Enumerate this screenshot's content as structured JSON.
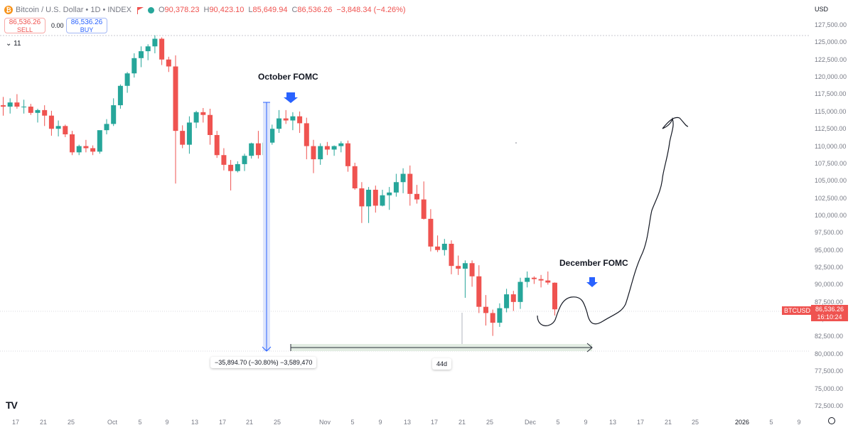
{
  "header": {
    "coin_glyph": "₿",
    "symbol": "Bitcoin / U.S. Dollar • 1D • INDEX",
    "ohlc": [
      {
        "k": "O",
        "v": "90,378.23"
      },
      {
        "k": "H",
        "v": "90,423.10"
      },
      {
        "k": "L",
        "v": "85,649.94"
      },
      {
        "k": "C",
        "v": "86,536.26"
      },
      {
        "k": "",
        "v": "−3,848.34 (−4.26%)"
      }
    ]
  },
  "trade": {
    "sell_price": "86,536.26",
    "sell_label": "SELL",
    "buy_price": "86,536.26",
    "buy_label": "BUY",
    "spread": "0.00"
  },
  "indicator_toggle": "11",
  "currency": "USD",
  "y_axis_labels": [
    "127,500.00",
    "125,000.00",
    "122,500.00",
    "120,000.00",
    "117,500.00",
    "115,000.00",
    "112,500.00",
    "110,000.00",
    "107,500.00",
    "105,000.00",
    "102,500.00",
    "100,000.00",
    "97,500.00",
    "95,000.00",
    "92,500.00",
    "90,000.00",
    "87,500.00",
    "85,000.00",
    "82,500.00",
    "80,000.00",
    "77,500.00",
    "75,000.00",
    "72,500.00"
  ],
  "x_axis_labels": [
    {
      "t": "17",
      "b": false
    },
    {
      "t": "21",
      "b": false
    },
    {
      "t": "25",
      "b": false
    },
    {
      "t": "Oct",
      "b": false
    },
    {
      "t": "5",
      "b": false
    },
    {
      "t": "9",
      "b": false
    },
    {
      "t": "13",
      "b": false
    },
    {
      "t": "17",
      "b": false
    },
    {
      "t": "21",
      "b": false
    },
    {
      "t": "25",
      "b": false
    },
    {
      "t": "Nov",
      "b": false
    },
    {
      "t": "5",
      "b": false
    },
    {
      "t": "9",
      "b": false
    },
    {
      "t": "13",
      "b": false
    },
    {
      "t": "17",
      "b": false
    },
    {
      "t": "21",
      "b": false
    },
    {
      "t": "25",
      "b": false
    },
    {
      "t": "Dec",
      "b": false
    },
    {
      "t": "5",
      "b": false
    },
    {
      "t": "9",
      "b": false
    },
    {
      "t": "13",
      "b": false
    },
    {
      "t": "17",
      "b": false
    },
    {
      "t": "21",
      "b": false
    },
    {
      "t": "25",
      "b": false
    },
    {
      "t": "2026",
      "b": true
    },
    {
      "t": "5",
      "b": false
    },
    {
      "t": "9",
      "b": false
    }
  ],
  "annotations": {
    "october": "October FOMC",
    "december": "December FOMC",
    "measure": "−35,894.70 (−30.80%) −3,589,470",
    "duration": "44d"
  },
  "price_tag": {
    "symbol": "BTCUSD",
    "price": "86,536.26",
    "countdown": "16:10:24"
  },
  "colors": {
    "up": "#26a69a",
    "down": "#ef5350",
    "marker": "#2962ff"
  },
  "chart_data": {
    "type": "candlestick",
    "y_range": [
      71500,
      129000
    ],
    "candles": [
      [
        116000,
        117200,
        114500,
        115800
      ],
      [
        115800,
        117000,
        114800,
        116400
      ],
      [
        116400,
        117600,
        115500,
        115800
      ],
      [
        115800,
        116800,
        114800,
        115800
      ],
      [
        115800,
        116200,
        114600,
        114900
      ],
      [
        114900,
        115500,
        113500,
        115300
      ],
      [
        115300,
        116000,
        113000,
        114500
      ],
      [
        114500,
        115200,
        111600,
        112600
      ],
      [
        112600,
        113800,
        111500,
        113000
      ],
      [
        113000,
        113200,
        111400,
        111800
      ],
      [
        111800,
        112300,
        108800,
        109200
      ],
      [
        109200,
        110300,
        108800,
        110100
      ],
      [
        110100,
        111000,
        109200,
        109800
      ],
      [
        109800,
        110200,
        108800,
        109300
      ],
      [
        109300,
        112000,
        109000,
        112400
      ],
      [
        112400,
        114000,
        111800,
        113300
      ],
      [
        113300,
        117000,
        113000,
        116000
      ],
      [
        116000,
        119000,
        115500,
        118800
      ],
      [
        118800,
        120800,
        117800,
        120600
      ],
      [
        120600,
        123500,
        120000,
        122800
      ],
      [
        122800,
        124500,
        121500,
        123800
      ],
      [
        123800,
        124800,
        122500,
        124500
      ],
      [
        124500,
        126100,
        123500,
        125600
      ],
      [
        125600,
        125800,
        121800,
        122600
      ],
      [
        122600,
        123000,
        120800,
        121600
      ],
      [
        121600,
        123200,
        104700,
        112300
      ],
      [
        112300,
        113100,
        109800,
        110300
      ],
      [
        110300,
        114400,
        109000,
        113500
      ],
      [
        113500,
        115200,
        112700,
        115000
      ],
      [
        115000,
        115600,
        113500,
        114600
      ],
      [
        114600,
        115500,
        110300,
        111700
      ],
      [
        111700,
        112300,
        108400,
        108800
      ],
      [
        108800,
        109800,
        106600,
        107400
      ],
      [
        107400,
        108100,
        103700,
        106500
      ],
      [
        106500,
        107900,
        106300,
        107500
      ],
      [
        107500,
        109000,
        106500,
        108700
      ],
      [
        108700,
        110600,
        108300,
        110500
      ],
      [
        110500,
        112300,
        108300,
        108800
      ],
      [
        108800,
        111000,
        107400,
        110600
      ],
      [
        110600,
        113200,
        110300,
        112600
      ],
      [
        112600,
        115300,
        112000,
        114100
      ],
      [
        114100,
        115300,
        113300,
        113800
      ],
      [
        113800,
        115000,
        112400,
        114400
      ],
      [
        114400,
        115100,
        112000,
        113400
      ],
      [
        113400,
        114200,
        108200,
        110100
      ],
      [
        110100,
        111000,
        106200,
        108200
      ],
      [
        108200,
        110500,
        107400,
        110100
      ],
      [
        110100,
        110700,
        108800,
        109600
      ],
      [
        109600,
        110200,
        108700,
        110100
      ],
      [
        110100,
        110800,
        109200,
        110500
      ],
      [
        110500,
        110900,
        106400,
        107200
      ],
      [
        107200,
        107700,
        103800,
        104000
      ],
      [
        104000,
        104900,
        99000,
        101400
      ],
      [
        101400,
        104200,
        99000,
        103800
      ],
      [
        103800,
        104400,
        100500,
        101500
      ],
      [
        101500,
        103800,
        101400,
        103000
      ],
      [
        103000,
        104200,
        100900,
        103400
      ],
      [
        103400,
        106100,
        102800,
        104900
      ],
      [
        104900,
        106900,
        103300,
        106100
      ],
      [
        106100,
        107300,
        101500,
        103200
      ],
      [
        103200,
        104500,
        101800,
        102400
      ],
      [
        102400,
        105000,
        99500,
        99600
      ],
      [
        99600,
        101000,
        94900,
        95600
      ],
      [
        95600,
        97200,
        94800,
        95100
      ],
      [
        95100,
        96700,
        94300,
        96000
      ],
      [
        96000,
        96500,
        91600,
        92800
      ],
      [
        92800,
        94300,
        91500,
        92400
      ],
      [
        92400,
        93600,
        88200,
        93200
      ],
      [
        93200,
        93600,
        89800,
        91300
      ],
      [
        91300,
        92900,
        86000,
        86900
      ],
      [
        86900,
        88600,
        84200,
        86000
      ],
      [
        86000,
        86500,
        82700,
        84600
      ],
      [
        84600,
        87400,
        84000,
        86700
      ],
      [
        86700,
        89500,
        86100,
        88700
      ],
      [
        88700,
        89200,
        86300,
        87600
      ],
      [
        87600,
        91100,
        86600,
        90500
      ],
      [
        90500,
        92000,
        89700,
        91100
      ],
      [
        91100,
        91300,
        90200,
        90900
      ],
      [
        90900,
        91500,
        89700,
        90700
      ],
      [
        90700,
        92000,
        90100,
        90400
      ],
      [
        90378.23,
        90423.1,
        85649.94,
        86536.26
      ]
    ]
  }
}
